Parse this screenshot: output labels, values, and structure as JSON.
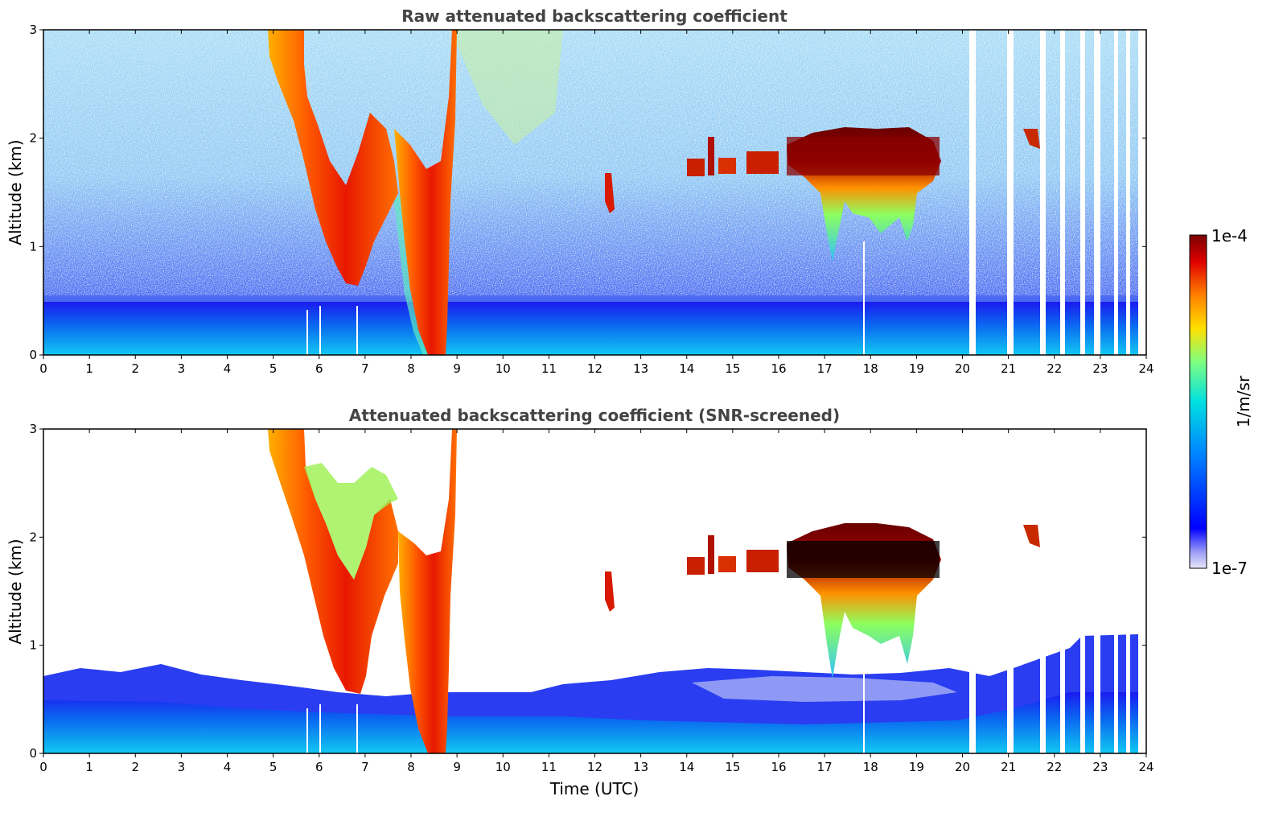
{
  "chart_data": [
    {
      "type": "heatmap",
      "title": "Raw attenuated backscattering coefficient",
      "xlabel": "",
      "ylabel": "Altitude (km)",
      "xlim": [
        0,
        24
      ],
      "ylim": [
        0,
        3
      ],
      "xticks": [
        "0",
        "1",
        "2",
        "3",
        "4",
        "5",
        "6",
        "7",
        "8",
        "9",
        "10",
        "11",
        "12",
        "13",
        "14",
        "15",
        "16",
        "17",
        "18",
        "19",
        "20",
        "21",
        "22",
        "23",
        "24"
      ],
      "yticks": [
        "0",
        "1",
        "2",
        "3"
      ],
      "screened": false,
      "features": [
        {
          "kind": "boundary_layer",
          "x": [
            0,
            24
          ],
          "top_km": 0.45
        },
        {
          "kind": "cloud",
          "x_start": 4.9,
          "x_end": 7.3,
          "bottom_km": 0.6,
          "top_km": 3.0
        },
        {
          "kind": "cloud",
          "x_start": 7.5,
          "x_end": 8.9,
          "bottom_km": 0.0,
          "top_km": 3.0
        },
        {
          "kind": "cloud",
          "x_start": 12.2,
          "x_end": 12.4,
          "bottom_km": 1.3,
          "top_km": 1.7
        },
        {
          "kind": "cloud",
          "x_start": 14.0,
          "x_end": 16.0,
          "bottom_km": 1.65,
          "top_km": 2.0
        },
        {
          "kind": "cloud",
          "x_start": 16.2,
          "x_end": 19.6,
          "bottom_km": 0.8,
          "top_km": 2.1
        },
        {
          "kind": "cloud",
          "x_start": 21.3,
          "x_end": 21.6,
          "bottom_km": 1.9,
          "top_km": 2.1
        }
      ],
      "gaps": [
        20.2,
        20.6,
        21.1,
        21.6,
        22.1,
        22.6,
        22.9,
        23.3,
        23.7
      ]
    },
    {
      "type": "heatmap",
      "title": "Attenuated backscattering coefficient (SNR-screened)",
      "xlabel": "Time (UTC)",
      "ylabel": "Altitude (km)",
      "xlim": [
        0,
        24
      ],
      "ylim": [
        0,
        3
      ],
      "xticks": [
        "0",
        "1",
        "2",
        "3",
        "4",
        "5",
        "6",
        "7",
        "8",
        "9",
        "10",
        "11",
        "12",
        "13",
        "14",
        "15",
        "16",
        "17",
        "18",
        "19",
        "20",
        "21",
        "22",
        "23",
        "24"
      ],
      "yticks": [
        "0",
        "1",
        "2",
        "3"
      ],
      "screened": true,
      "features": [
        {
          "kind": "boundary_layer",
          "x": [
            0,
            24
          ],
          "top_km": 0.7
        },
        {
          "kind": "cloud",
          "x_start": 4.9,
          "x_end": 7.3,
          "bottom_km": 0.5,
          "top_km": 3.0
        },
        {
          "kind": "cloud",
          "x_start": 7.5,
          "x_end": 8.9,
          "bottom_km": 0.0,
          "top_km": 3.0
        },
        {
          "kind": "cloud",
          "x_start": 12.2,
          "x_end": 12.4,
          "bottom_km": 1.3,
          "top_km": 1.7
        },
        {
          "kind": "cloud",
          "x_start": 14.0,
          "x_end": 16.0,
          "bottom_km": 1.65,
          "top_km": 2.0
        },
        {
          "kind": "cloud",
          "x_start": 16.2,
          "x_end": 19.6,
          "bottom_km": 0.7,
          "top_km": 2.15
        },
        {
          "kind": "cloud",
          "x_start": 21.3,
          "x_end": 21.6,
          "bottom_km": 1.9,
          "top_km": 2.1
        }
      ],
      "gaps": [
        20.2,
        20.6,
        21.1,
        21.6,
        22.1,
        22.6,
        22.9,
        23.3,
        23.7
      ]
    }
  ],
  "colorbar": {
    "label": "1/m/sr",
    "max_label": "1e-4",
    "min_label": "1e-7",
    "scale": "log",
    "colormap": [
      "#e8e8fa",
      "#0000ff",
      "#00aaff",
      "#00e5e5",
      "#7fff7f",
      "#ffe000",
      "#ff8000",
      "#e00000",
      "#8b0000"
    ]
  }
}
